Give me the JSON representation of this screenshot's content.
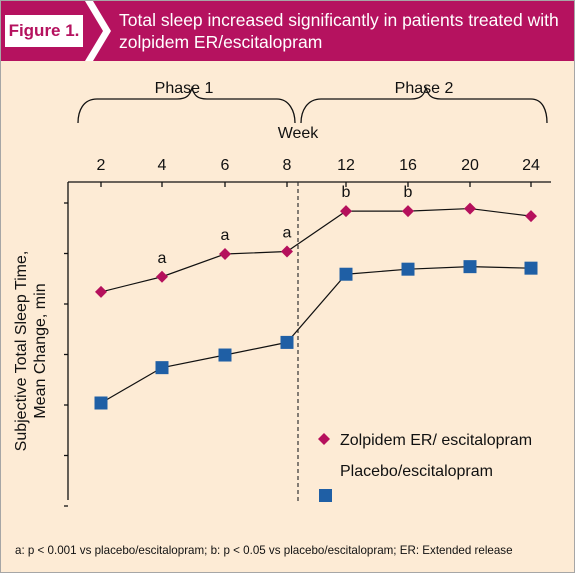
{
  "figure_label": "Figure 1.",
  "title_line1": "Total sleep increased significantly in patients treated with",
  "title_line2": "zolpidem ER/escitalopram",
  "footnote": "a: p < 0.001 vs placebo/escitalopram; b: p < 0.05 vs placebo/escitalopram; ER: Extended release",
  "colors": {
    "banner": "#b5125f",
    "background": "#fdebd5",
    "zolpidem": "#b5105c",
    "placebo": "#1f5fa5"
  },
  "chart_data": {
    "type": "line",
    "xlabel": "Week",
    "ylabel_line1": "Subjective Total Sleep Time,",
    "ylabel_line2": "Mean Change, min",
    "phases": [
      {
        "label": "Phase 1",
        "weeks": [
          "2",
          "4",
          "6",
          "8"
        ]
      },
      {
        "label": "Phase 2",
        "weeks": [
          "12",
          "16",
          "20",
          "24"
        ]
      }
    ],
    "categories": [
      "2",
      "4",
      "6",
      "8",
      "12",
      "16",
      "20",
      "24"
    ],
    "y_tick_labels_shown": false,
    "legend_placement": "lower-right",
    "series": [
      {
        "name": "Zolpidem ER/ escitalopram",
        "marker": "diamond",
        "values": [
          4.2,
          4.5,
          4.95,
          5.0,
          5.8,
          5.8,
          5.85,
          5.7
        ],
        "annotations": [
          "",
          "a",
          "a",
          "a",
          "b",
          "b",
          "",
          ""
        ]
      },
      {
        "name": "Placebo/escitalopram",
        "marker": "square",
        "values": [
          2.0,
          2.7,
          2.95,
          3.2,
          4.55,
          4.65,
          4.7,
          4.67
        ],
        "annotations": [
          "",
          "",
          "",
          "",
          "",
          "",
          "",
          ""
        ]
      }
    ]
  }
}
